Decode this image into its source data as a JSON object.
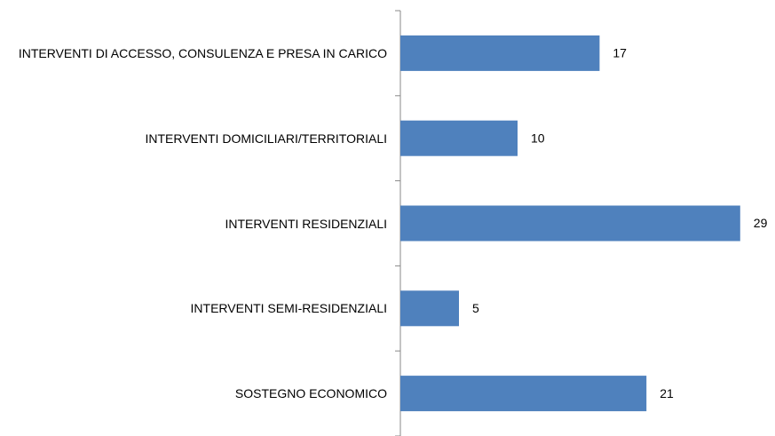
{
  "chart_data": {
    "type": "bar",
    "orientation": "horizontal",
    "categories": [
      "INTERVENTI DI ACCESSO, CONSULENZA E PRESA IN CARICO",
      "INTERVENTI DOMICILIARI/TERRITORIALI",
      "INTERVENTI RESIDENZIALI",
      "INTERVENTI  SEMI-RESIDENZIALI",
      "SOSTEGNO ECONOMICO"
    ],
    "values": [
      17,
      10,
      29,
      5,
      21
    ],
    "color": "#4f81bd"
  }
}
